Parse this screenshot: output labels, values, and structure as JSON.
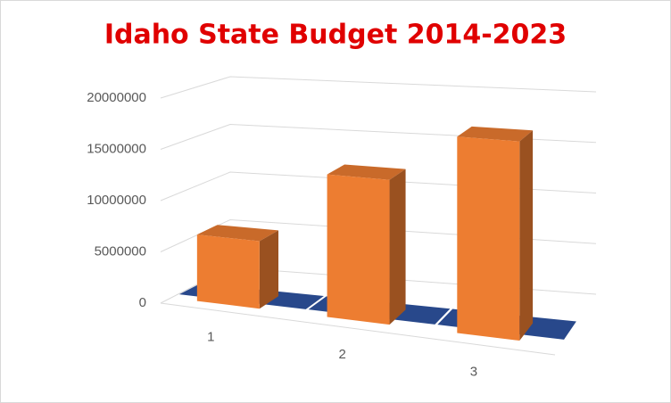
{
  "chart_data": {
    "type": "bar3d",
    "title": "Idaho State Budget 2014-2023",
    "categories": [
      "1",
      "2",
      "3"
    ],
    "series": [
      {
        "color": "#2f55a4",
        "values": [
          0,
          0,
          0
        ]
      },
      {
        "color": "#ed7d31",
        "values": [
          6500000,
          13500000,
          18000000
        ]
      }
    ],
    "ylim": [
      0,
      20000000
    ],
    "yticks": [
      0,
      5000000,
      10000000,
      15000000,
      20000000
    ],
    "grid": true
  }
}
